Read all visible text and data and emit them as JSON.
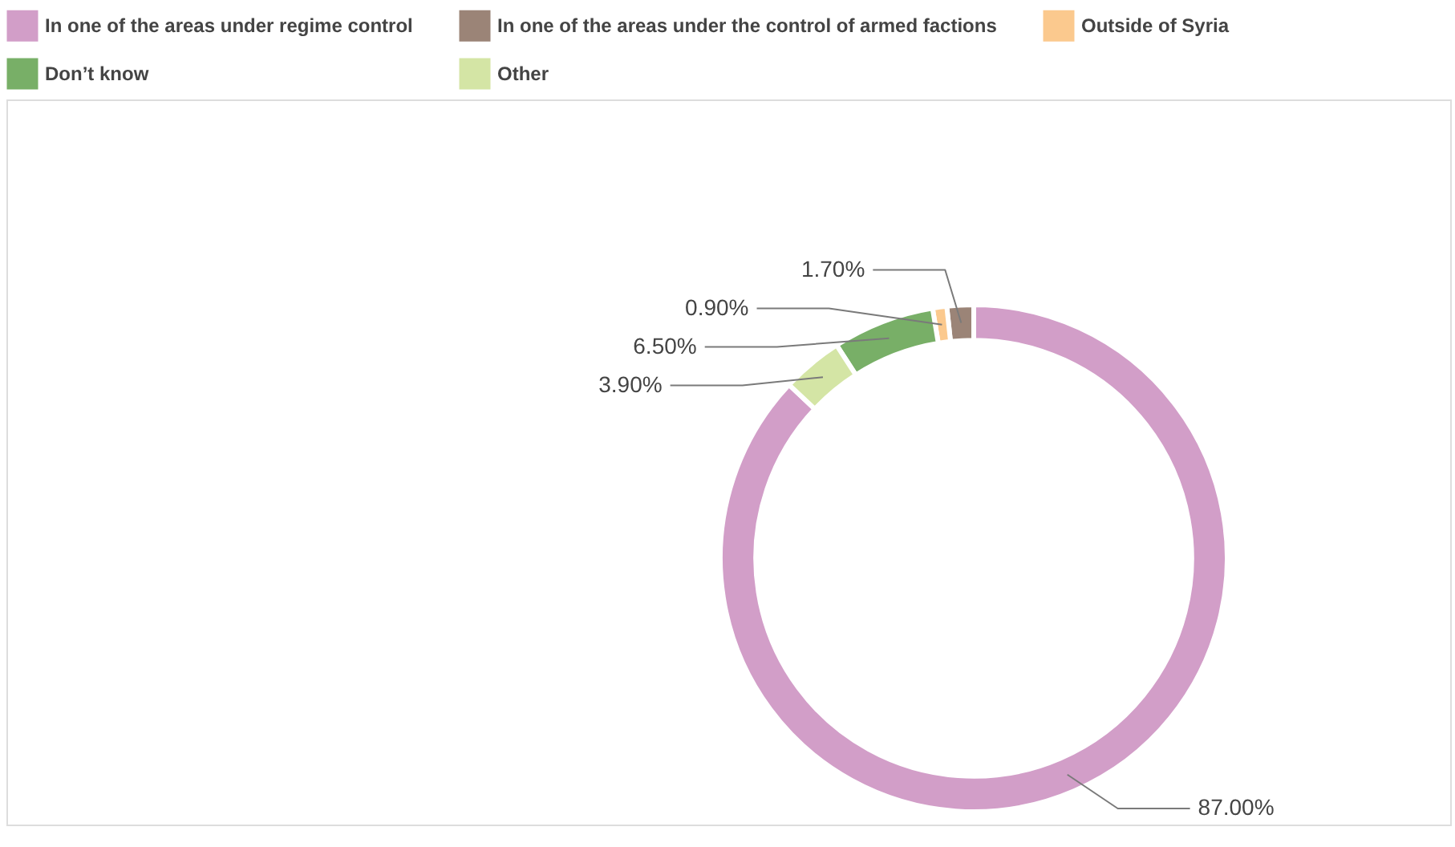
{
  "chart_data": {
    "type": "donut",
    "categories": [
      "In one of the areas under regime control",
      "In one of the areas under the control of armed factions",
      "Outside of Syria",
      "Don’t know",
      "Other"
    ],
    "values": [
      87,
      1.7,
      0.9,
      6.5,
      3.9
    ],
    "value_labels": [
      "87.00%",
      "1.70%",
      "0.90%",
      "6.50%",
      "3.90%"
    ],
    "colors": [
      "#d29ec8",
      "#9b8477",
      "#fbc98e",
      "#78af67",
      "#d4e5a5"
    ],
    "legend": "top"
  }
}
